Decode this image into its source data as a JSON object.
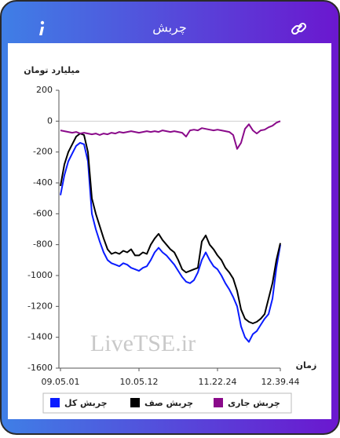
{
  "header": {
    "title": "چربش"
  },
  "chart_data": {
    "type": "line",
    "y_label": "میلیارد تومان",
    "x_label": "زمان",
    "watermark": "LiveTSE.ir",
    "categories": [
      "09.05.01",
      null,
      null,
      null,
      null,
      null,
      null,
      null,
      null,
      null,
      null,
      null,
      null,
      null,
      null,
      null,
      null,
      null,
      null,
      null,
      "10.05.12",
      null,
      null,
      null,
      null,
      null,
      null,
      null,
      null,
      null,
      null,
      null,
      null,
      null,
      null,
      null,
      null,
      null,
      null,
      null,
      "11.22.24",
      null,
      null,
      null,
      null,
      null,
      null,
      null,
      null,
      null,
      null,
      null,
      null,
      null,
      null,
      null,
      "12.39.44"
    ],
    "ylim": [
      -1600,
      200
    ],
    "yticks": [
      200,
      0,
      -200,
      -400,
      -600,
      -800,
      -1000,
      -1200,
      -1400,
      -1600
    ],
    "series": [
      {
        "name": "چربش کل",
        "color": "#0a1cff",
        "values": [
          -480,
          -350,
          -260,
          -210,
          -160,
          -140,
          -150,
          -260,
          -600,
          -700,
          -780,
          -850,
          -900,
          -920,
          -930,
          -940,
          -920,
          -930,
          -950,
          -960,
          -970,
          -950,
          -940,
          -900,
          -850,
          -820,
          -850,
          -870,
          -900,
          -930,
          -970,
          -1010,
          -1040,
          -1050,
          -1030,
          -980,
          -900,
          -850,
          -900,
          -940,
          -960,
          -1000,
          -1050,
          -1090,
          -1140,
          -1200,
          -1330,
          -1400,
          -1430,
          -1380,
          -1360,
          -1320,
          -1280,
          -1250,
          -1150,
          -950,
          -800
        ]
      },
      {
        "name": "چربش صف",
        "color": "#000000",
        "values": [
          -420,
          -280,
          -200,
          -150,
          -100,
          -80,
          -90,
          -200,
          -500,
          -600,
          -680,
          -760,
          -830,
          -860,
          -850,
          -860,
          -840,
          -850,
          -830,
          -870,
          -870,
          -850,
          -860,
          -800,
          -760,
          -730,
          -770,
          -800,
          -830,
          -850,
          -900,
          -960,
          -980,
          -970,
          -960,
          -950,
          -780,
          -740,
          -800,
          -830,
          -870,
          -900,
          -950,
          -980,
          -1020,
          -1100,
          -1220,
          -1280,
          -1300,
          -1310,
          -1300,
          -1280,
          -1250,
          -1150,
          -1050,
          -900,
          -790
        ]
      },
      {
        "name": "چربش جاری",
        "color": "#8a0a8a",
        "values": [
          -60,
          -65,
          -70,
          -75,
          -70,
          -80,
          -75,
          -80,
          -85,
          -80,
          -90,
          -80,
          -85,
          -75,
          -80,
          -70,
          -75,
          -70,
          -65,
          -70,
          -75,
          -70,
          -65,
          -70,
          -65,
          -70,
          -60,
          -65,
          -70,
          -65,
          -70,
          -75,
          -100,
          -60,
          -55,
          -60,
          -45,
          -50,
          -55,
          -60,
          -55,
          -60,
          -65,
          -70,
          -90,
          -180,
          -140,
          -50,
          -20,
          -60,
          -80,
          -60,
          -55,
          -40,
          -30,
          -10,
          0
        ]
      }
    ]
  }
}
